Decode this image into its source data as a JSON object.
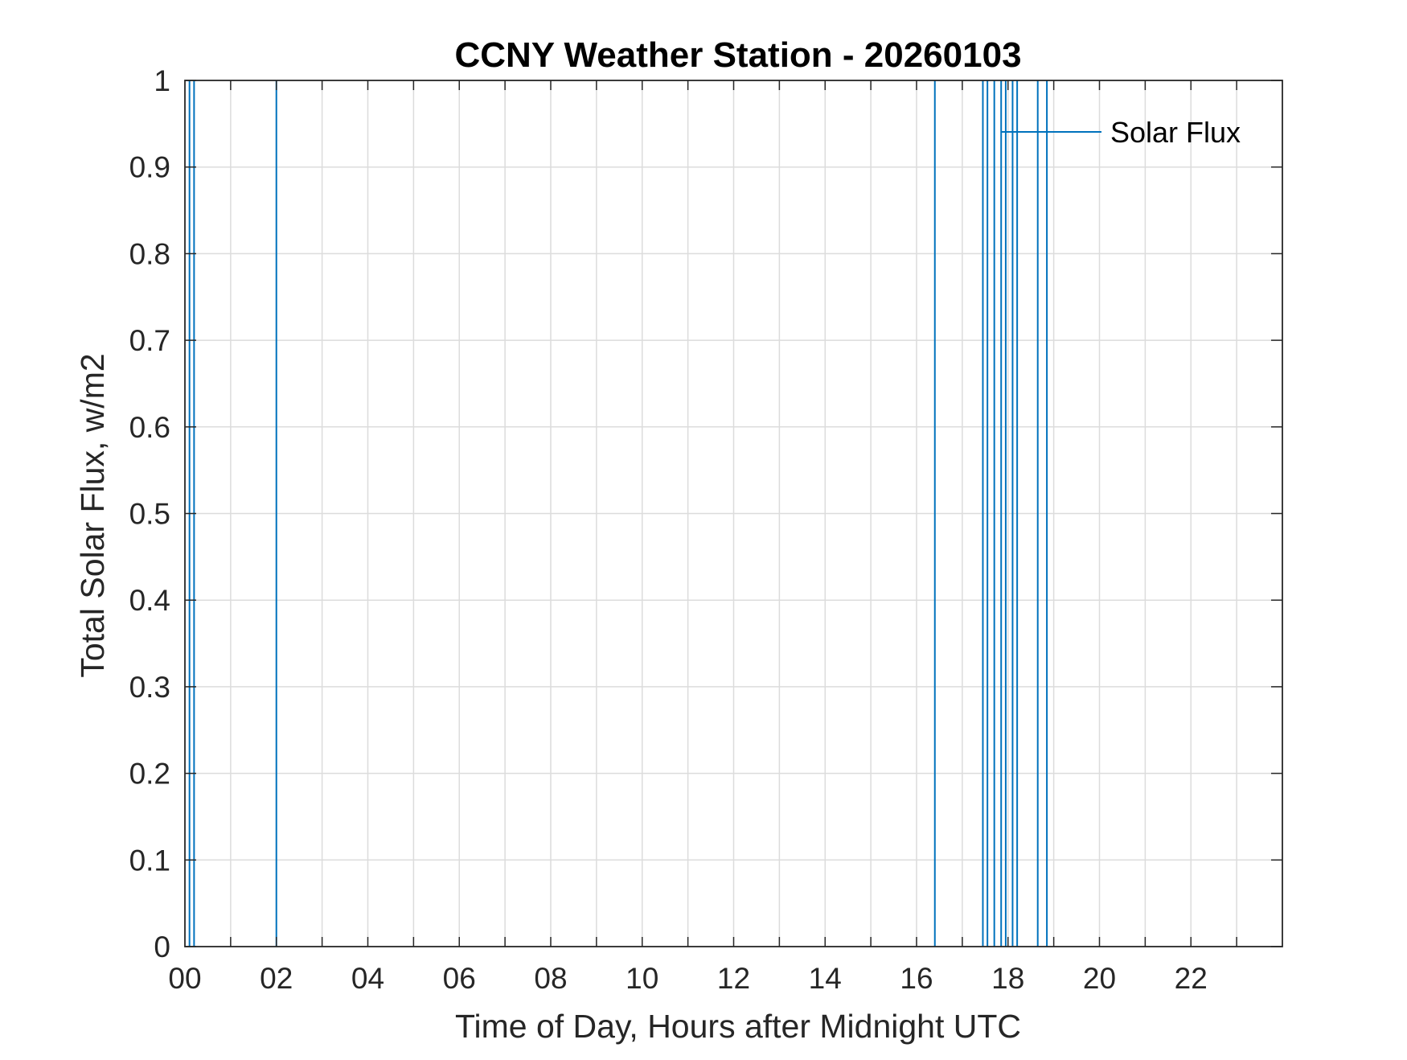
{
  "chart_data": {
    "type": "line",
    "title": "CCNY Weather Station - 20260103",
    "xlabel": "Time of Day, Hours after Midnight UTC",
    "ylabel": "Total Solar Flux, w/m2",
    "xlim": [
      0,
      24
    ],
    "ylim": [
      0,
      1
    ],
    "x_tick_values": [
      0,
      2,
      4,
      6,
      8,
      10,
      12,
      14,
      16,
      18,
      20,
      22
    ],
    "x_tick_labels": [
      "00",
      "02",
      "04",
      "06",
      "08",
      "10",
      "12",
      "14",
      "16",
      "18",
      "20",
      "22"
    ],
    "y_tick_values": [
      0,
      0.1,
      0.2,
      0.3,
      0.4,
      0.5,
      0.6,
      0.7,
      0.8,
      0.9,
      1
    ],
    "y_tick_labels": [
      "0",
      "0.1",
      "0.2",
      "0.3",
      "0.4",
      "0.5",
      "0.6",
      "0.7",
      "0.8",
      "0.9",
      "1"
    ],
    "grid": true,
    "legend_position": "top-right",
    "series": [
      {
        "name": "Solar Flux",
        "color": "#0072BD",
        "spikes_at_hours": [
          0.1,
          0.2,
          2.0,
          16.4,
          17.45,
          17.55,
          17.7,
          17.85,
          17.95,
          18.1,
          18.2,
          18.65,
          18.85
        ],
        "baseline": 0,
        "peak": 1
      }
    ]
  }
}
